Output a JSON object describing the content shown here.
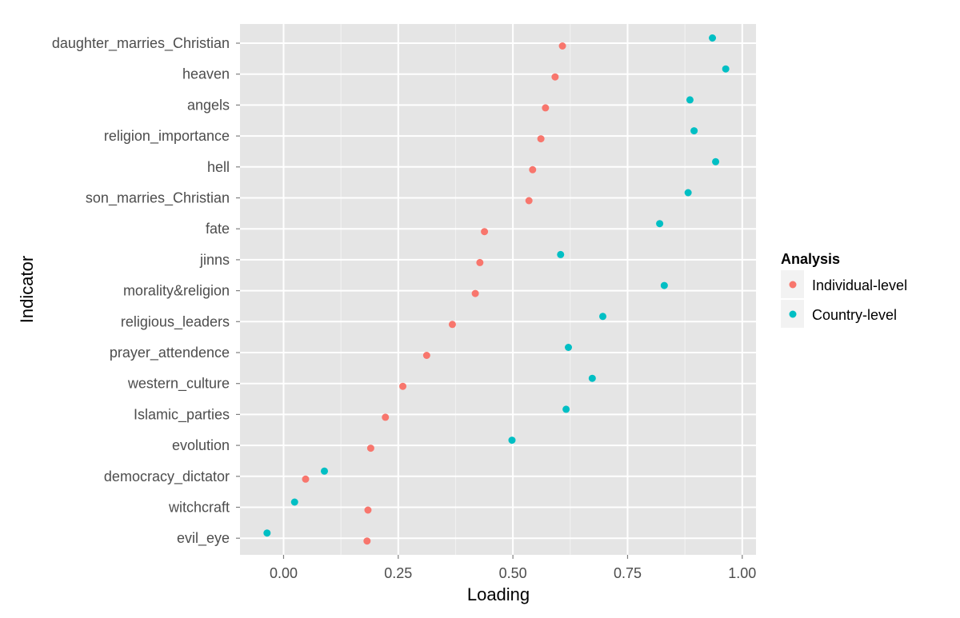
{
  "chart_data": {
    "type": "scatter",
    "xlabel": "Loading",
    "ylabel": "Indicator",
    "xlim": [
      -0.095,
      1.03
    ],
    "x_ticks": [
      0.0,
      0.25,
      0.5,
      0.75,
      1.0
    ],
    "x_tick_labels": [
      "0.00",
      "0.25",
      "0.50",
      "0.75",
      "1.00"
    ],
    "grid": true,
    "legend_title": "Analysis",
    "legend_position": "right",
    "categories": [
      "daughter_marries_Christian",
      "heaven",
      "angels",
      "religion_importance",
      "hell",
      "son_marries_Christian",
      "fate",
      "jinns",
      "morality&religion",
      "religious_leaders",
      "prayer_attendence",
      "western_culture",
      "Islamic_parties",
      "evolution",
      "democracy_dictator",
      "witchcraft",
      "evil_eye"
    ],
    "series": [
      {
        "name": "Individual-level",
        "color": "#F8766D",
        "values": [
          0.608,
          0.592,
          0.571,
          0.561,
          0.543,
          0.535,
          0.438,
          0.428,
          0.418,
          0.368,
          0.312,
          0.26,
          0.222,
          0.19,
          0.048,
          0.184,
          0.182
        ]
      },
      {
        "name": "Country-level",
        "color": "#00BFC4",
        "values": [
          0.935,
          0.964,
          0.886,
          0.895,
          0.942,
          0.882,
          0.82,
          0.604,
          0.83,
          0.696,
          0.621,
          0.673,
          0.616,
          0.498,
          0.089,
          0.024,
          -0.036
        ]
      }
    ]
  }
}
